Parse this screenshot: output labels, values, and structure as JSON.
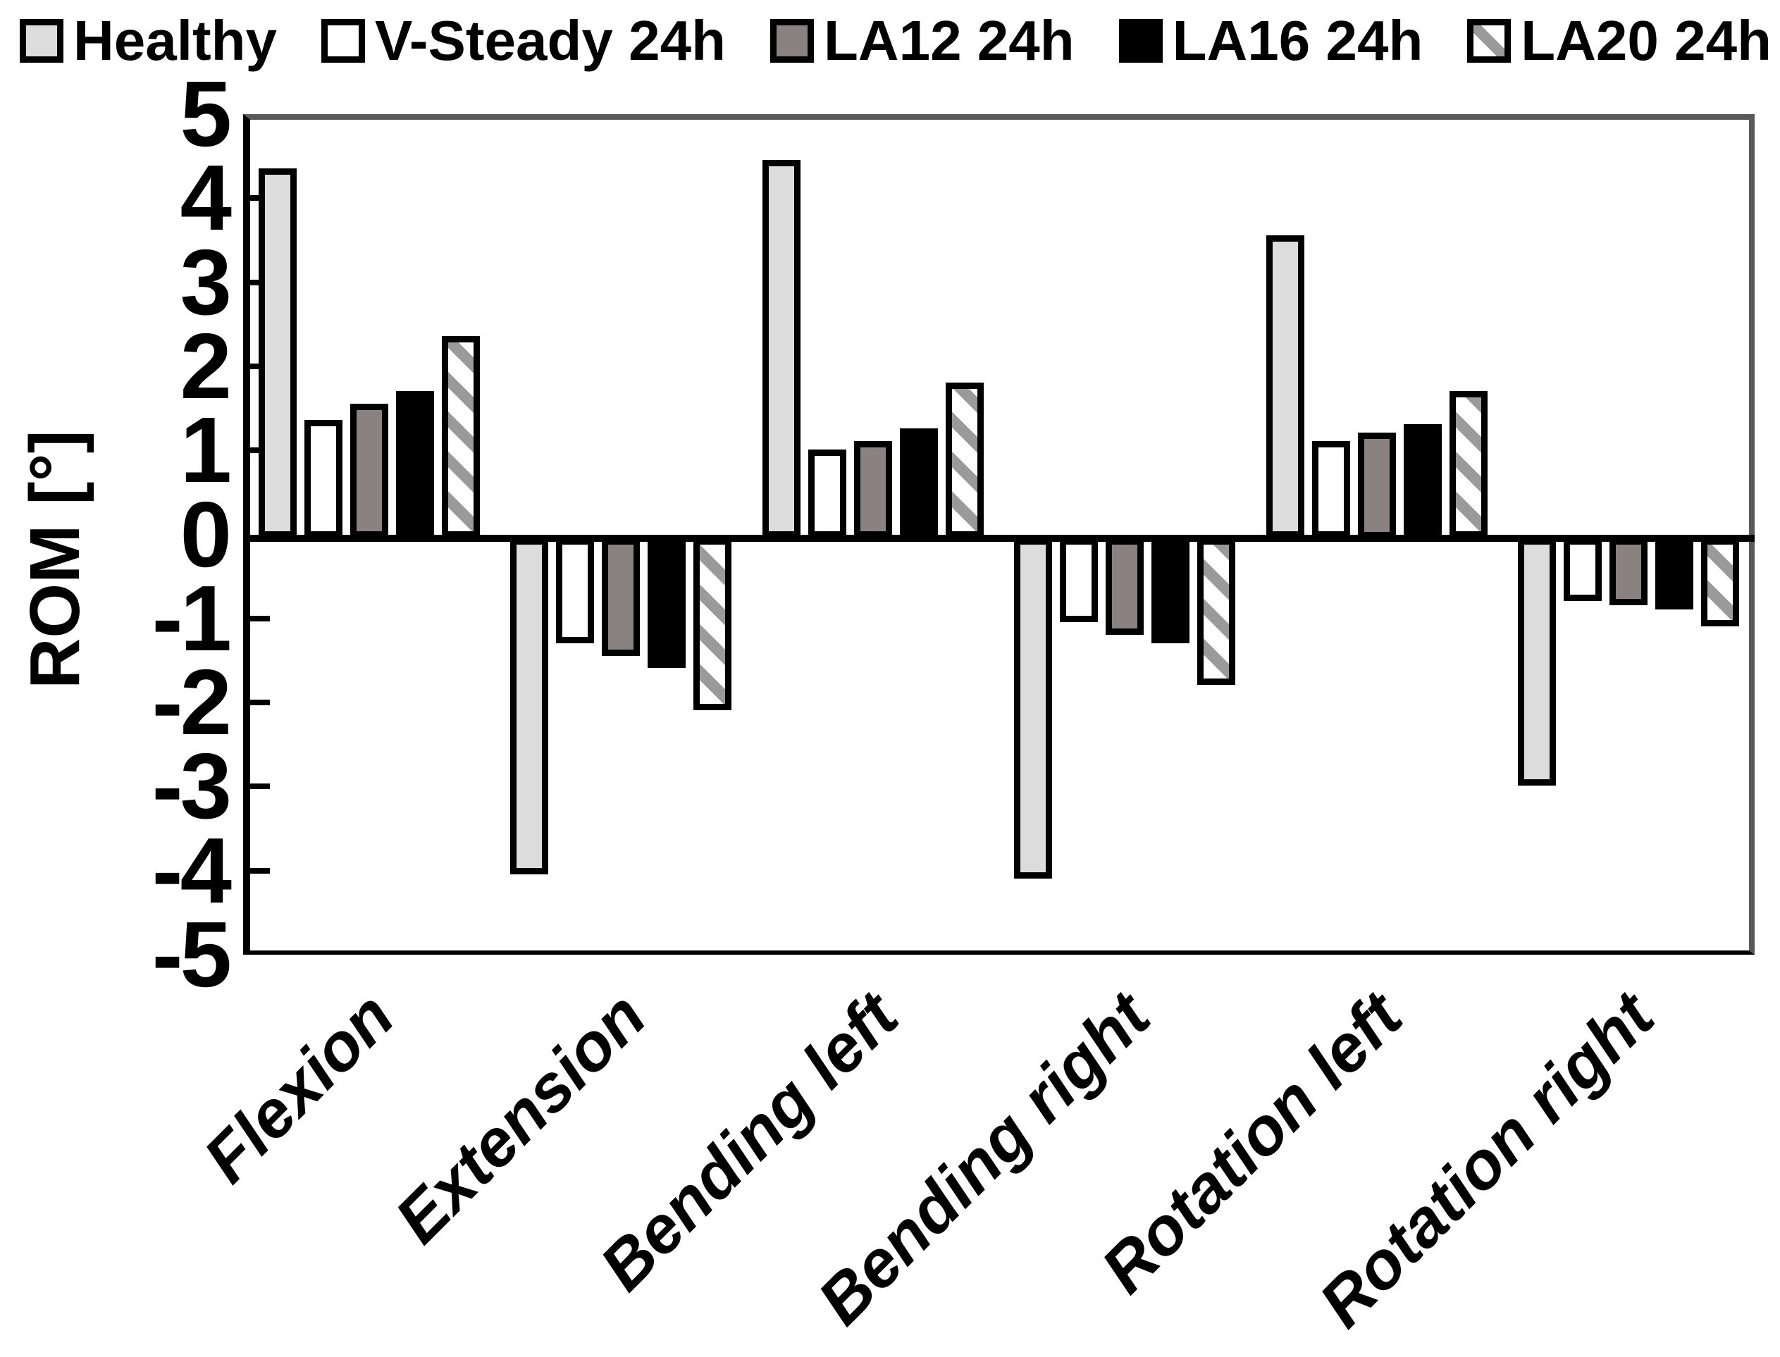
{
  "chart_data": {
    "type": "bar",
    "title": "",
    "xlabel": "",
    "ylabel": "ROM [°]",
    "ylim": [
      -5,
      5
    ],
    "yticks": [
      5,
      4,
      3,
      2,
      1,
      0,
      -1,
      -2,
      -3,
      -4,
      -5
    ],
    "grid": false,
    "legend_position": "top",
    "categories": [
      "Flexion",
      "Extension",
      "Bending left",
      "Bending right",
      "Rotation left",
      "Rotation right"
    ],
    "series": [
      {
        "name": "Healthy",
        "fill": "#dcdcdc",
        "pattern": "solid",
        "values": [
          4.4,
          -4.0,
          4.5,
          -4.05,
          3.6,
          -2.95
        ]
      },
      {
        "name": "V-Steady 24h",
        "fill": "#ffffff",
        "pattern": "solid",
        "values": [
          1.4,
          -1.25,
          1.05,
          -1.0,
          1.15,
          -0.75
        ]
      },
      {
        "name": "LA12 24h",
        "fill": "#8a8280",
        "pattern": "solid",
        "values": [
          1.6,
          -1.4,
          1.15,
          -1.15,
          1.25,
          -0.8
        ]
      },
      {
        "name": "LA16 24h",
        "fill": "#000000",
        "pattern": "solid",
        "values": [
          1.75,
          -1.55,
          1.3,
          -1.25,
          1.35,
          -0.85
        ]
      },
      {
        "name": "LA20 24h",
        "fill": "#ffffff",
        "pattern": "hatch",
        "values": [
          2.4,
          -2.05,
          1.85,
          -1.75,
          1.75,
          -1.05
        ]
      }
    ],
    "colors": {
      "bar_border": "#000000",
      "hatch_stripe": "#9a9a9a",
      "frame_gray": "#5a5a5a",
      "axis_black": "#000000"
    }
  }
}
